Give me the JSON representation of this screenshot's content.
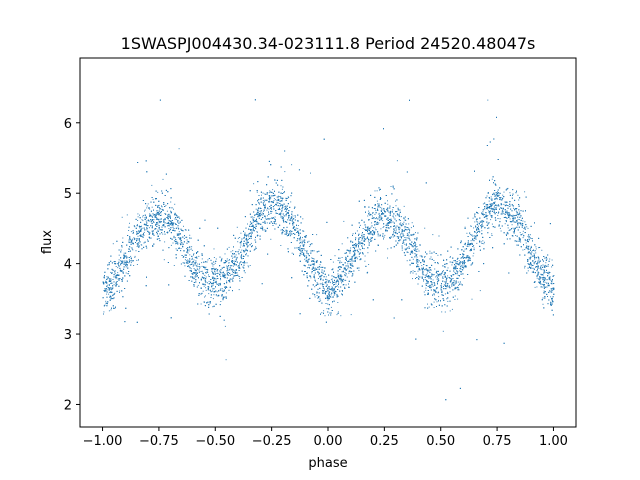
{
  "chart_data": {
    "type": "scatter",
    "title": "1SWASPJ004430.34-023111.8 Period 24520.48047s",
    "xlabel": "phase",
    "ylabel": "flux",
    "xlim": [
      -1.1,
      1.1
    ],
    "ylim": [
      1.68,
      6.92
    ],
    "xticks": [
      -1.0,
      -0.75,
      -0.5,
      -0.25,
      0.0,
      0.25,
      0.5,
      0.75,
      1.0
    ],
    "xtick_labels": [
      "−1.00",
      "−0.75",
      "−0.50",
      "−0.25",
      "0.00",
      "0.25",
      "0.50",
      "0.75",
      "1.00"
    ],
    "yticks": [
      2,
      3,
      4,
      5,
      6
    ],
    "ytick_labels": [
      "2",
      "3",
      "4",
      "5",
      "6"
    ],
    "grid": false,
    "marker_color": "#1f77b4",
    "series": [
      {
        "x": [
          -1.0,
          -0.95,
          -0.9,
          -0.85,
          -0.8,
          -0.75,
          -0.7,
          -0.65,
          -0.6,
          -0.55,
          -0.5,
          -0.45,
          -0.4,
          -0.35,
          -0.3,
          -0.25,
          -0.2,
          -0.15,
          -0.1,
          -0.05,
          0.0,
          0.05,
          0.1,
          0.15,
          0.2,
          0.25,
          0.3,
          0.35,
          0.4,
          0.45,
          0.5,
          0.55,
          0.6,
          0.65,
          0.7,
          0.75,
          0.8,
          0.85,
          0.9,
          0.95,
          1.0
        ],
        "y": [
          3.62,
          3.75,
          4.05,
          4.35,
          4.58,
          4.67,
          4.6,
          4.35,
          4.0,
          3.78,
          3.75,
          3.8,
          4.05,
          4.4,
          4.72,
          4.86,
          4.78,
          4.5,
          4.1,
          3.82,
          3.62,
          3.75,
          4.05,
          4.35,
          4.58,
          4.67,
          4.6,
          4.35,
          4.0,
          3.78,
          3.75,
          3.8,
          4.05,
          4.4,
          4.72,
          4.86,
          4.78,
          4.5,
          4.1,
          3.82,
          3.62
        ],
        "spread": 0.17
      }
    ]
  }
}
